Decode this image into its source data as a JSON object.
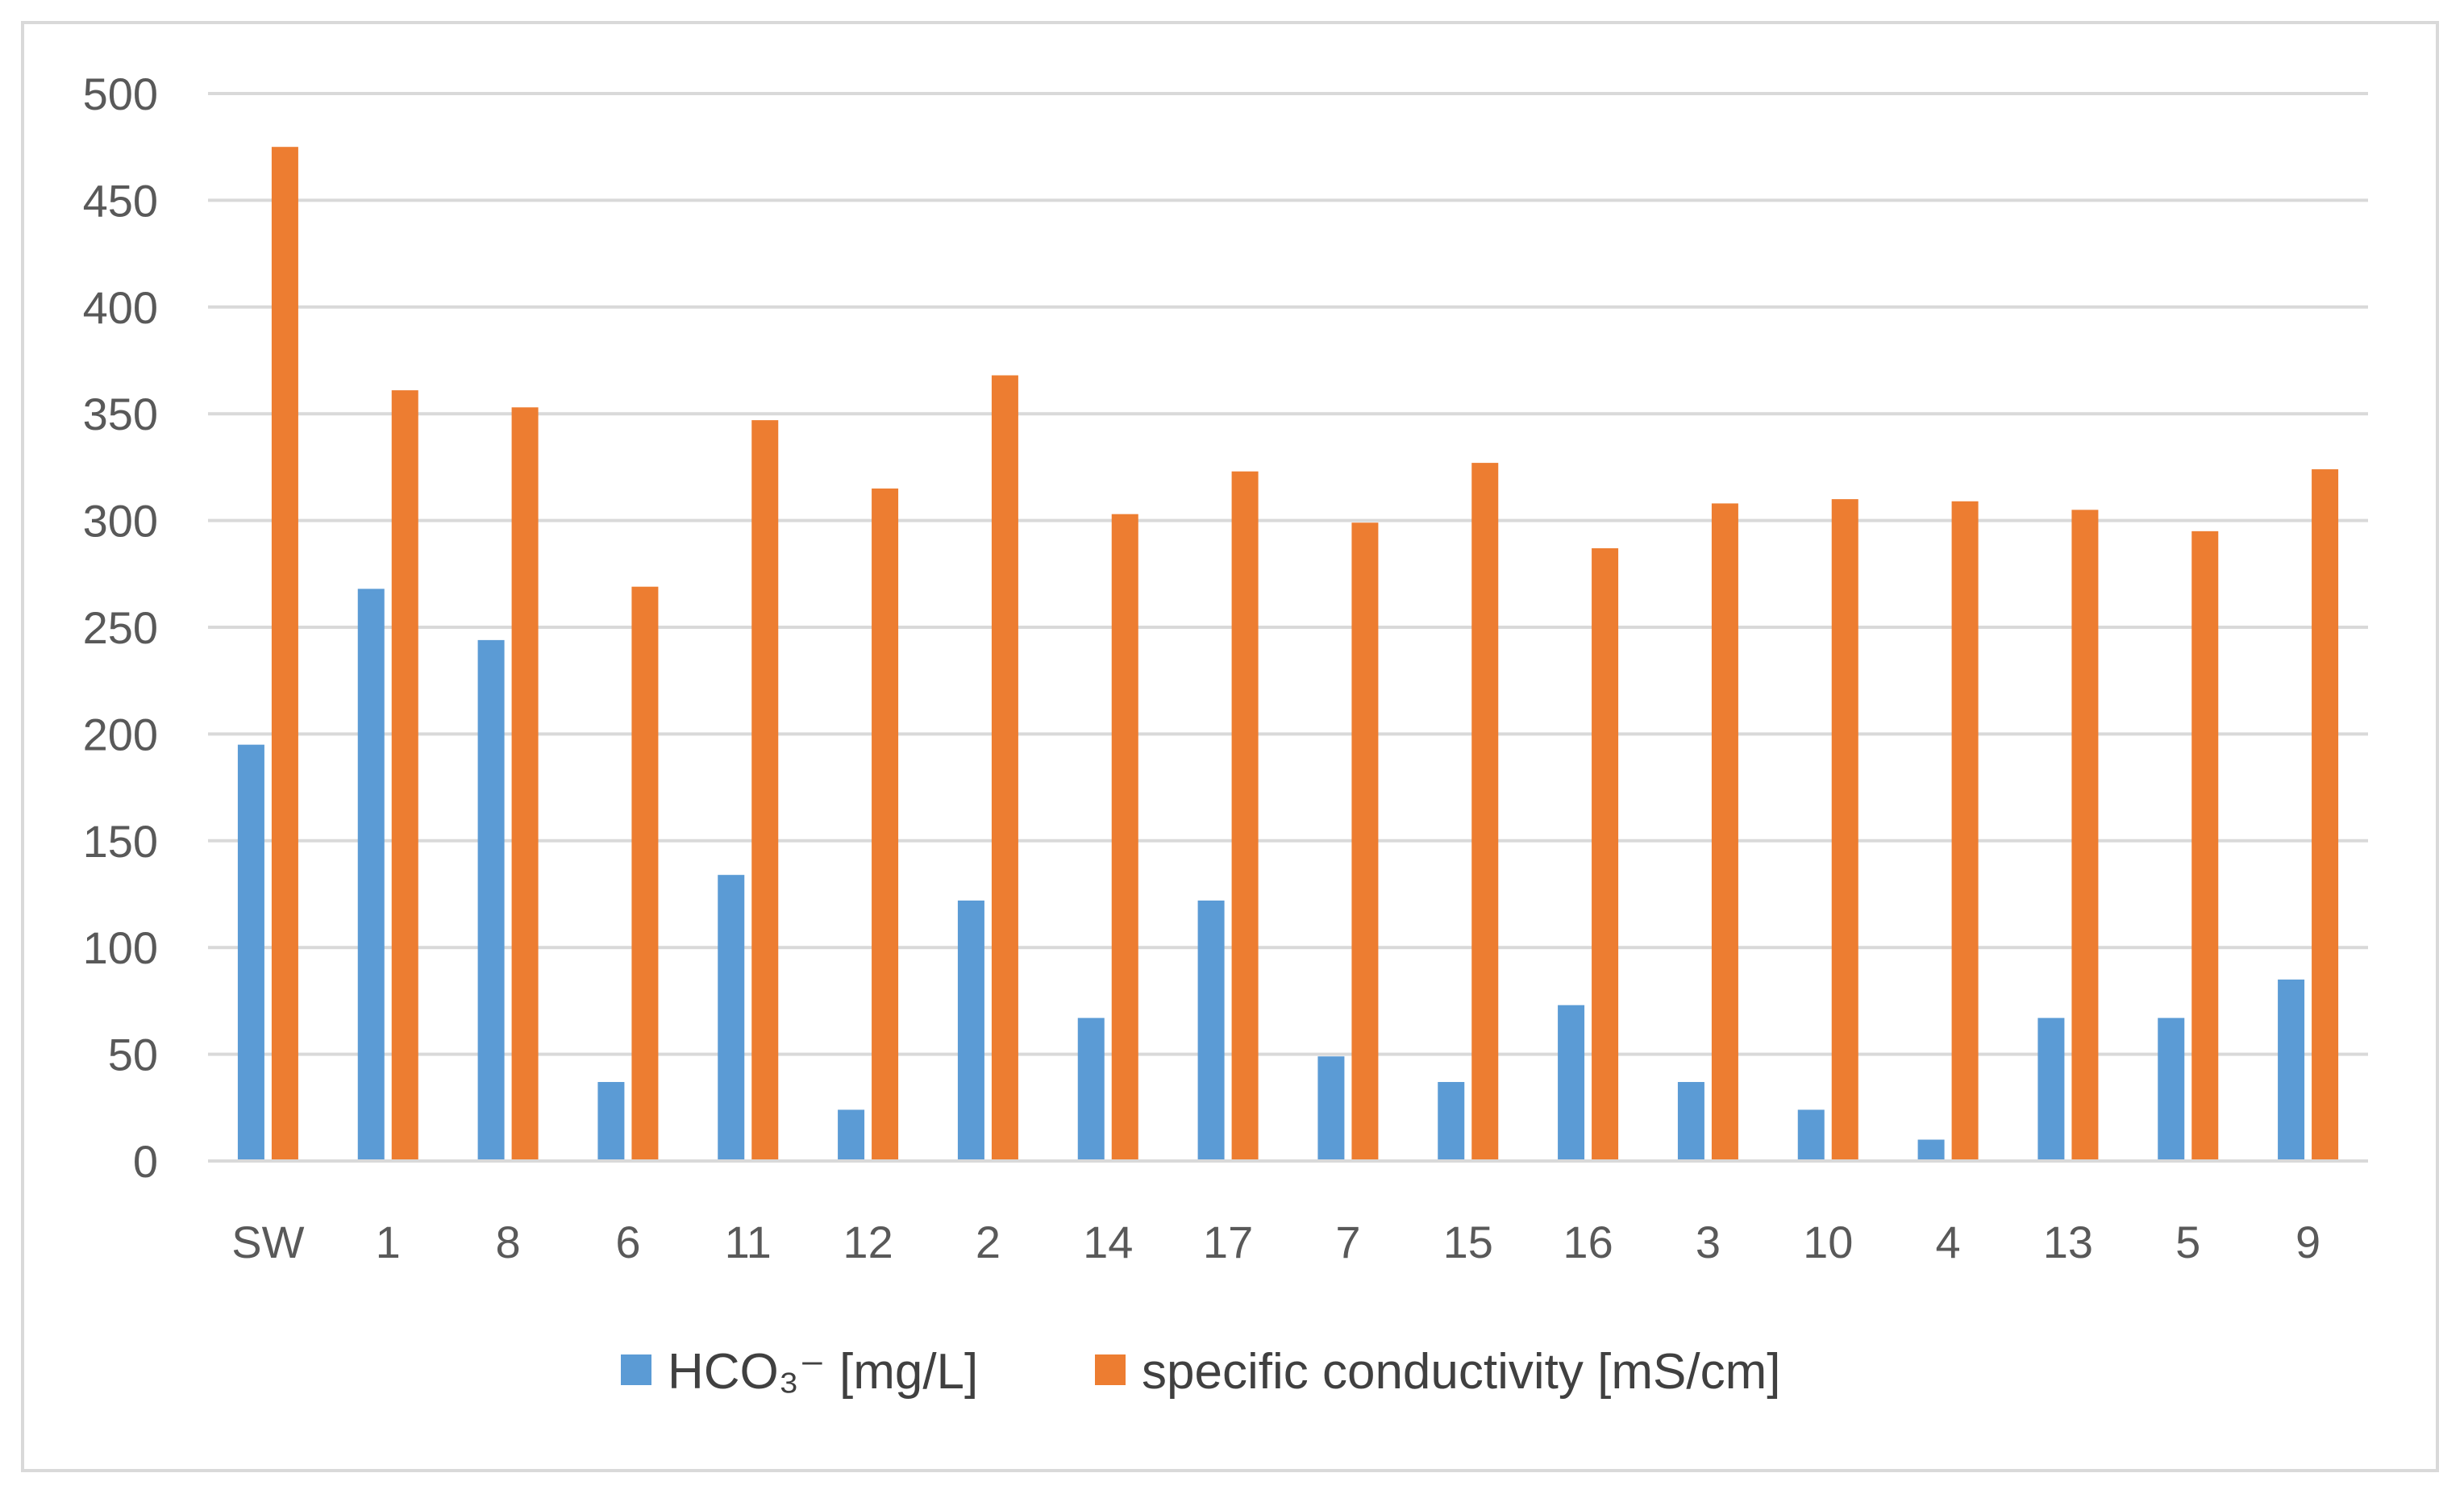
{
  "chart_data": {
    "type": "bar",
    "title": "",
    "xlabel": "",
    "ylabel": "",
    "ylim": [
      0,
      500
    ],
    "yticks": [
      "0",
      "50",
      "100",
      "150",
      "200",
      "250",
      "300",
      "350",
      "400",
      "450",
      "500"
    ],
    "grid": true,
    "legend_position": "bottom",
    "categories": [
      "SW",
      "1",
      "8",
      "6",
      "11",
      "12",
      "2",
      "14",
      "17",
      "7",
      "15",
      "16",
      "3",
      "10",
      "4",
      "13",
      "5",
      "9"
    ],
    "series": [
      {
        "name": "HCO₃⁻ [mg/L]",
        "color": "#5b9bd5",
        "values": [
          195,
          268,
          244,
          37,
          134,
          24,
          122,
          67,
          122,
          49,
          37,
          73,
          37,
          24,
          10,
          67,
          67,
          85
        ]
      },
      {
        "name": "specific conductivity [mS/cm]",
        "color": "#ed7d31",
        "values": [
          475,
          361,
          353,
          269,
          347,
          315,
          368,
          303,
          323,
          299,
          327,
          287,
          308,
          310,
          309,
          305,
          295,
          324
        ]
      }
    ]
  }
}
